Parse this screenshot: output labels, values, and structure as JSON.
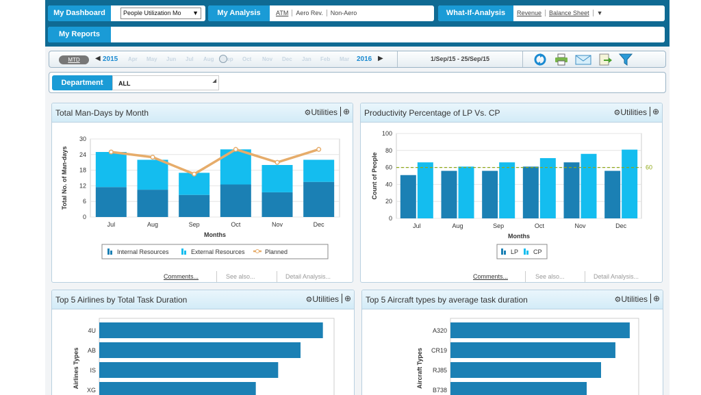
{
  "nav": {
    "my_dashboard": "My Dashboard",
    "dashboard_select": "People Utilization Mo",
    "my_analysis": "My Analysis",
    "analysis_links": [
      "ATM",
      "Aero Rev.",
      "Non-Aero"
    ],
    "what_if": "What-If-Analysis",
    "what_if_links": [
      "Revenue",
      "Balance Sheet"
    ],
    "what_if_more": "▼",
    "my_reports": "My Reports"
  },
  "datebar": {
    "mtd": "MTD",
    "year_start": "2015",
    "year_end": "2016",
    "months": [
      "Apr",
      "May",
      "Jun",
      "Jul",
      "Aug",
      "Sep",
      "Oct",
      "Nov",
      "Dec",
      "Jan",
      "Feb",
      "Mar"
    ],
    "range": "1/Sep/15 - 25/Sep/15"
  },
  "toolbar_icons": [
    "refresh-icon",
    "print-icon",
    "email-icon",
    "export-icon",
    "filter-icon"
  ],
  "filter": {
    "label": "Department",
    "value": "ALL"
  },
  "panel_common": {
    "utilities": "Utilities",
    "comments": "Comments...",
    "see_also": "See also...",
    "detail": "Detail Analysis..."
  },
  "colors": {
    "dark": "#1b80b4",
    "light": "#14bdef",
    "planned": "#e6ac6a",
    "target": "#8fa818"
  },
  "panels": {
    "man_days": "Total Man-Days by Month",
    "productivity": "Productivity Percentage of LP Vs. CP",
    "airlines": "Top 5 Airlines by Total Task Duration",
    "aircraft": "Top 5 Aircraft types by average task duration"
  },
  "chart_data": [
    {
      "type": "bar",
      "stacked": true,
      "categories": [
        "Jul",
        "Aug",
        "Sep",
        "Oct",
        "Nov",
        "Dec"
      ],
      "series": [
        {
          "name": "Internal Resources",
          "values": [
            11.5,
            10.5,
            8.5,
            12.5,
            9.5,
            13.5
          ]
        },
        {
          "name": "External Resources",
          "values": [
            13.5,
            11.5,
            8.5,
            13.5,
            10.5,
            8.5
          ]
        },
        {
          "name": "Planned",
          "type": "line",
          "values": [
            25,
            23,
            16.5,
            26,
            21,
            26
          ]
        }
      ],
      "xlabel": "Months",
      "ylabel": "Total No. of Man-days",
      "ylim": [
        0,
        30
      ],
      "yticks": [
        0,
        6,
        12,
        18,
        24,
        30
      ]
    },
    {
      "type": "bar",
      "categories": [
        "Jul",
        "Aug",
        "Sep",
        "Oct",
        "Nov",
        "Dec"
      ],
      "series": [
        {
          "name": "LP",
          "values": [
            51,
            56,
            56,
            61,
            66,
            56
          ]
        },
        {
          "name": "CP",
          "values": [
            66,
            61,
            66,
            71,
            76,
            81
          ]
        }
      ],
      "target_line": {
        "value": 60,
        "label": "60"
      },
      "xlabel": "Months",
      "ylabel": "Count of People",
      "ylim": [
        0,
        100
      ],
      "yticks": [
        0,
        20,
        40,
        60,
        80,
        100
      ]
    },
    {
      "type": "bar",
      "orientation": "horizontal",
      "categories": [
        "4U",
        "AB",
        "IS",
        "XG"
      ],
      "values": [
        100,
        90,
        80,
        70
      ],
      "ylabel": "Airlines Types"
    },
    {
      "type": "bar",
      "orientation": "horizontal",
      "categories": [
        "A320",
        "CR19",
        "RJ85",
        "B738"
      ],
      "values": [
        100,
        92,
        84,
        76
      ],
      "ylabel": "Aircraft Types"
    }
  ]
}
